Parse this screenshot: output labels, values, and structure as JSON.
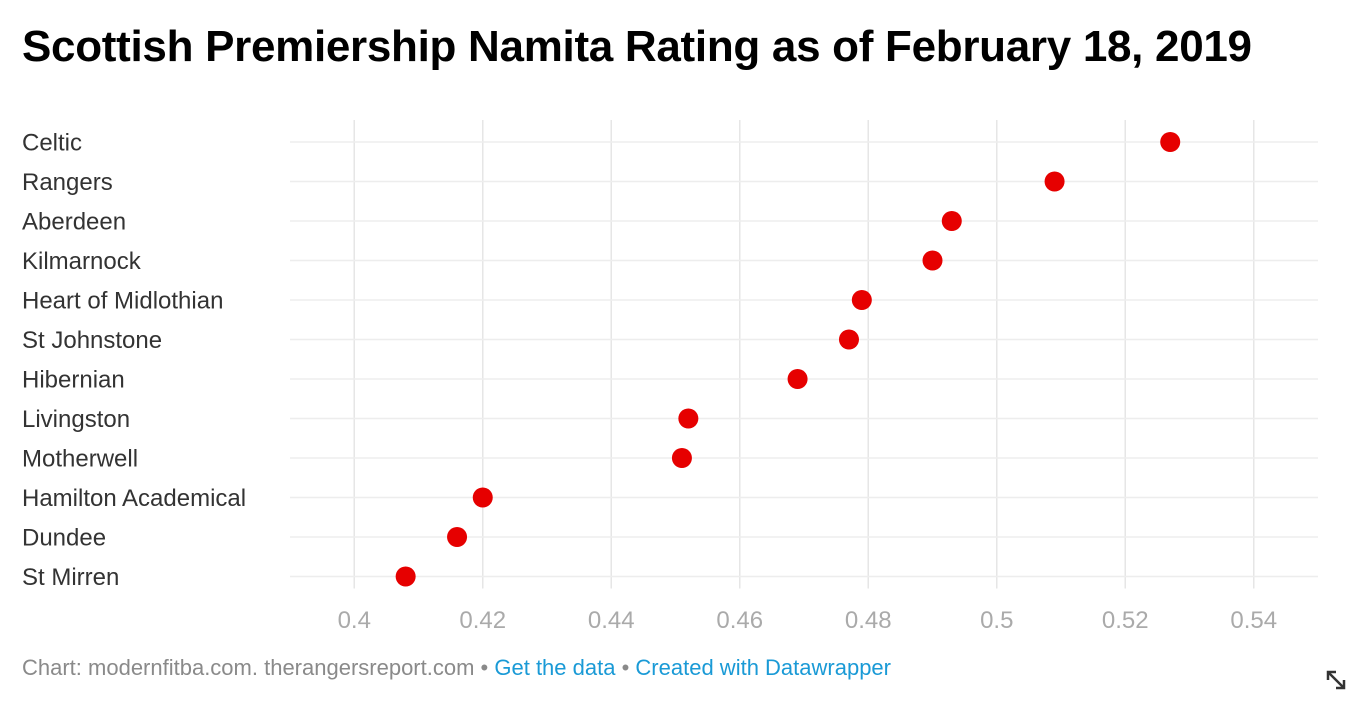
{
  "chart_data": {
    "type": "scatter",
    "title": "Scottish Premiership Namita Rating as of February 18, 2019",
    "categories": [
      "Celtic",
      "Rangers",
      "Aberdeen",
      "Kilmarnock",
      "Heart of Midlothian",
      "St Johnstone",
      "Hibernian",
      "Livingston",
      "Motherwell",
      "Hamilton Academical",
      "Dundee",
      "St Mirren"
    ],
    "values": [
      0.527,
      0.509,
      0.493,
      0.49,
      0.479,
      0.477,
      0.469,
      0.452,
      0.451,
      0.42,
      0.416,
      0.408
    ],
    "xlim": [
      0.39,
      0.55
    ],
    "xticks": [
      0.4,
      0.42,
      0.44,
      0.46,
      0.48,
      0.5,
      0.52,
      0.54
    ],
    "xtick_labels": [
      "0.4",
      "0.42",
      "0.44",
      "0.46",
      "0.48",
      "0.5",
      "0.52",
      "0.54"
    ],
    "xlabel": "",
    "ylabel": "",
    "grid": true,
    "marker_color": "#e60000"
  },
  "footer": {
    "source": "Chart: modernfitba.com. therangersreport.com",
    "separator": "•",
    "get_data": "Get the data",
    "created_with": "Created with Datawrapper"
  },
  "icons": {
    "resize": "resize-icon"
  }
}
